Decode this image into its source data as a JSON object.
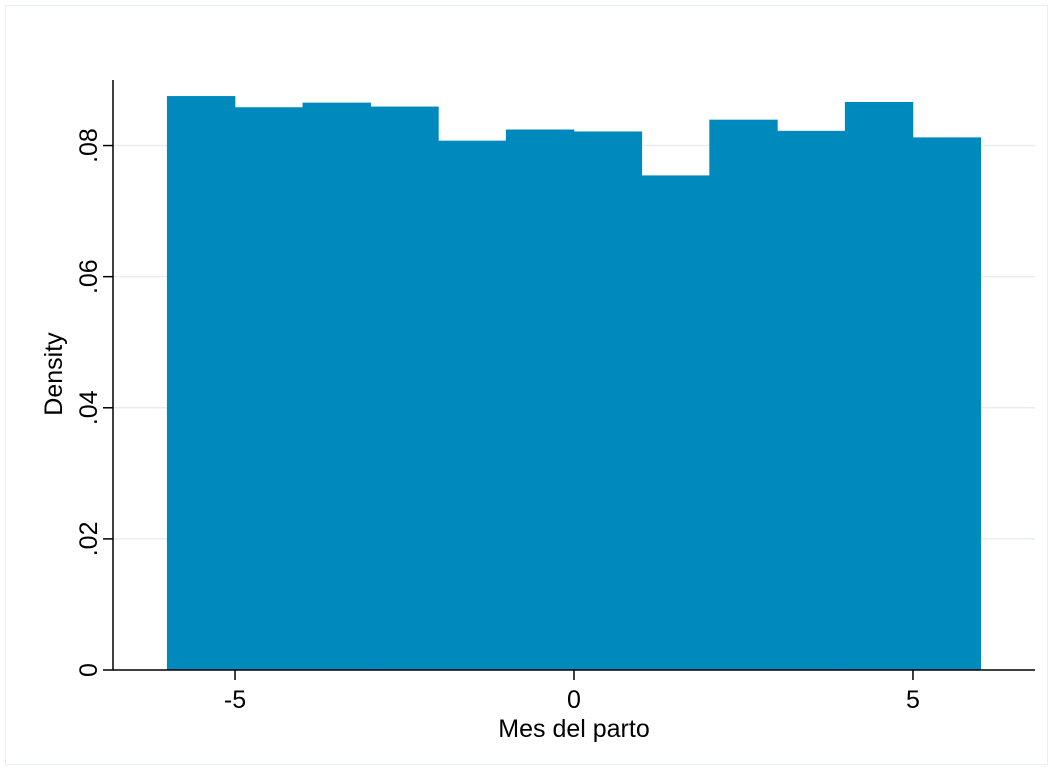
{
  "chart_data": {
    "type": "bar",
    "subtype": "histogram",
    "xlabel": "Mes del parto",
    "ylabel": "Density",
    "bin_edges": [
      -6,
      -5,
      -4,
      -3,
      -2,
      -1,
      0,
      1,
      2,
      3,
      4,
      5,
      6
    ],
    "values": [
      0.0875,
      0.0858,
      0.0865,
      0.0859,
      0.0807,
      0.0824,
      0.0821,
      0.0754,
      0.0839,
      0.0822,
      0.0866,
      0.0812
    ],
    "xlim": [
      -6.8,
      6.8
    ],
    "ylim": [
      0,
      0.09
    ],
    "xticks": [
      -5,
      0,
      5
    ],
    "xtick_labels": [
      "-5",
      "0",
      "5"
    ],
    "yticks": [
      0,
      0.02,
      0.04,
      0.06,
      0.08
    ],
    "ytick_labels": [
      "0",
      ".02",
      ".04",
      ".06",
      ".08"
    ],
    "y_gridlines": true,
    "colors": {
      "bar": "#0089bc",
      "grid": "#e6eef1",
      "axis": "#000000"
    }
  }
}
